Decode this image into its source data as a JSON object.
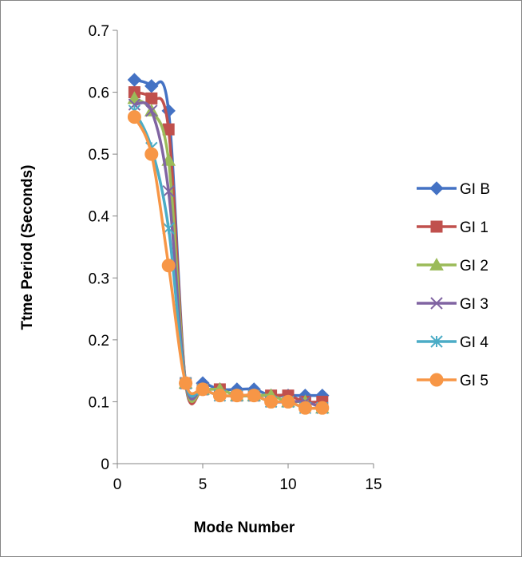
{
  "chart_data": {
    "type": "line",
    "title": "",
    "xlabel": "Mode Number",
    "ylabel": "Ttme Period (Seconds)",
    "xlim": [
      0,
      15
    ],
    "ylim": [
      0,
      0.7
    ],
    "x_ticks": [
      "0",
      "5",
      "10",
      "15"
    ],
    "y_ticks": [
      "0",
      "0.1",
      "0.2",
      "0.3",
      "0.4",
      "0.5",
      "0.6",
      "0.7"
    ],
    "grid": false,
    "smoothed": true,
    "legend_position": "right",
    "x": [
      1,
      2,
      3,
      4,
      5,
      6,
      7,
      8,
      9,
      10,
      11,
      12
    ],
    "series": [
      {
        "name": "GI B",
        "color": "#4472C4",
        "marker": "diamond",
        "values": [
          0.62,
          0.61,
          0.57,
          0.13,
          0.13,
          0.12,
          0.12,
          0.12,
          0.11,
          0.11,
          0.11,
          0.11
        ]
      },
      {
        "name": "GI 1",
        "color": "#C0504D",
        "marker": "square",
        "values": [
          0.6,
          0.59,
          0.54,
          0.13,
          0.12,
          0.12,
          0.11,
          0.11,
          0.11,
          0.11,
          0.1,
          0.1
        ]
      },
      {
        "name": "GI 2",
        "color": "#9BBB59",
        "marker": "triangle",
        "values": [
          0.59,
          0.57,
          0.49,
          0.13,
          0.12,
          0.12,
          0.11,
          0.11,
          0.11,
          0.1,
          0.1,
          0.09
        ]
      },
      {
        "name": "GI 3",
        "color": "#8064A2",
        "marker": "x",
        "values": [
          0.58,
          0.57,
          0.44,
          0.13,
          0.12,
          0.11,
          0.11,
          0.11,
          0.1,
          0.1,
          0.1,
          0.09
        ]
      },
      {
        "name": "GI 4",
        "color": "#4BACC6",
        "marker": "asterisk",
        "values": [
          0.57,
          0.51,
          0.38,
          0.13,
          0.12,
          0.11,
          0.11,
          0.11,
          0.1,
          0.1,
          0.09,
          0.09
        ]
      },
      {
        "name": "GI 5",
        "color": "#F79646",
        "marker": "circle",
        "values": [
          0.56,
          0.5,
          0.32,
          0.13,
          0.12,
          0.11,
          0.11,
          0.11,
          0.1,
          0.1,
          0.09,
          0.09
        ]
      }
    ]
  }
}
